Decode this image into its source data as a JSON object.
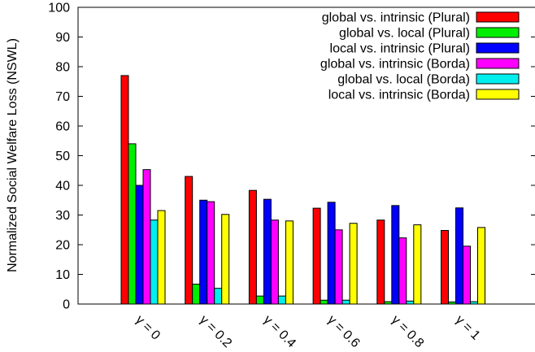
{
  "chart_data": {
    "type": "bar",
    "title": "",
    "xlabel": "",
    "ylabel": "Normalized Social Welfare Loss (NSWL)",
    "ylim": [
      0,
      100
    ],
    "yticks": [
      0,
      10,
      20,
      30,
      40,
      50,
      60,
      70,
      80,
      90,
      100
    ],
    "categories": [
      "γ = 0",
      "γ = 0.2",
      "γ = 0.4",
      "γ = 0.6",
      "γ = 0.8",
      "γ = 1"
    ],
    "legend_position": "top-right",
    "grid": false,
    "series": [
      {
        "name": "global vs. intrinsic (Plural)",
        "color": "#ff0000",
        "values": [
          77,
          43,
          38.3,
          32.3,
          28.3,
          24.8
        ]
      },
      {
        "name": "global vs. local (Plural)",
        "color": "#00ee00",
        "values": [
          54,
          6.7,
          2.7,
          1.3,
          0.8,
          0.7
        ]
      },
      {
        "name": "local vs. intrinsic (Plural)",
        "color": "#0000ff",
        "values": [
          40,
          35,
          35.3,
          34.3,
          33.2,
          32.4
        ]
      },
      {
        "name": "global vs. intrinsic (Borda)",
        "color": "#ff00ff",
        "values": [
          45.3,
          34.5,
          28.3,
          25,
          22.3,
          19.5
        ]
      },
      {
        "name": "global vs. local (Borda)",
        "color": "#00eeee",
        "values": [
          28.3,
          5.3,
          2.7,
          1.3,
          1,
          0.8
        ]
      },
      {
        "name": "local vs. intrinsic (Borda)",
        "color": "#ffff00",
        "values": [
          31.5,
          30.2,
          28,
          27.2,
          26.7,
          25.8
        ]
      }
    ]
  }
}
